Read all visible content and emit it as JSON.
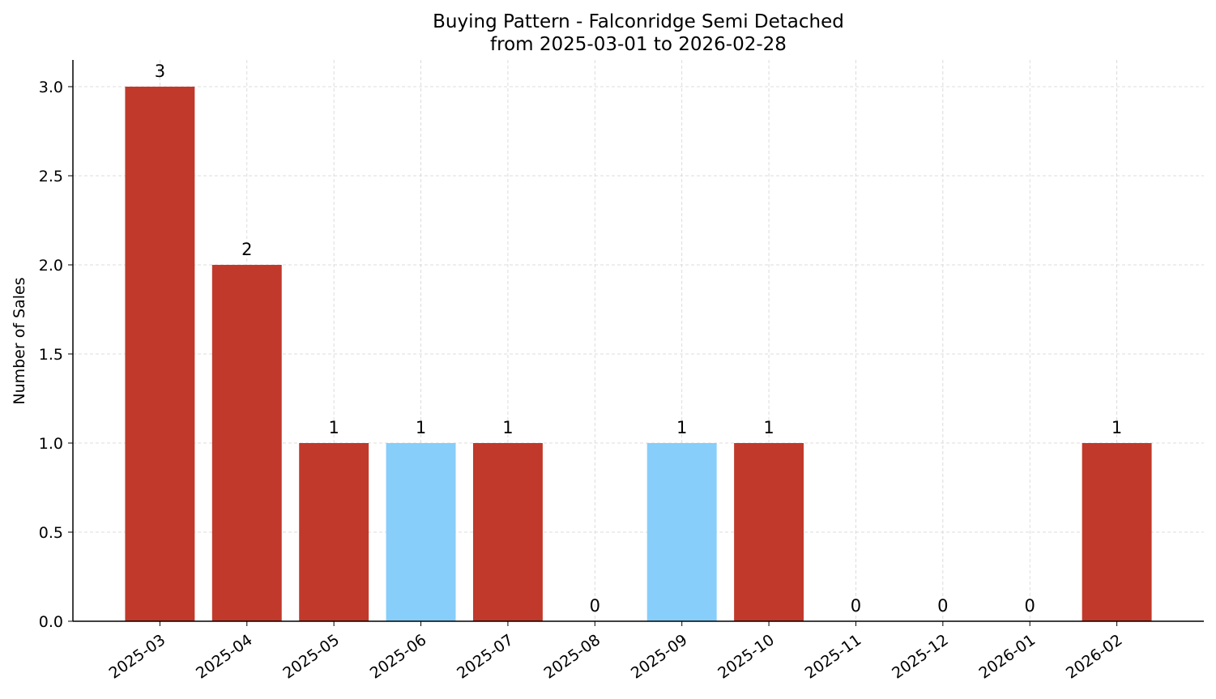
{
  "chart_data": {
    "type": "bar",
    "title": "Buying Pattern - Falconridge Semi Detached",
    "subtitle": "from 2025-03-01 to 2026-02-28",
    "y_label": "Number of Sales",
    "categories": [
      "2025-03",
      "2025-04",
      "2025-05",
      "2025-06",
      "2025-07",
      "2025-08",
      "2025-09",
      "2025-10",
      "2025-11",
      "2025-12",
      "2026-01",
      "2026-02"
    ],
    "values": [
      3,
      2,
      1,
      1,
      1,
      0,
      1,
      1,
      0,
      0,
      0,
      1
    ],
    "colors": [
      "#c0392b",
      "#c0392b",
      "#c0392b",
      "#87cefa",
      "#c0392b",
      "#c0392b",
      "#87cefa",
      "#c0392b",
      "#c0392b",
      "#c0392b",
      "#c0392b",
      "#c0392b"
    ],
    "ylim": [
      0,
      3.15
    ],
    "yticks": [
      {
        "value": 0,
        "label": "0.0"
      },
      {
        "value": 0.5,
        "label": "0.5"
      },
      {
        "value": 1,
        "label": "1.0"
      },
      {
        "value": 1.5,
        "label": "1.5"
      },
      {
        "value": 2,
        "label": "2.0"
      },
      {
        "value": 2.5,
        "label": "2.5"
      },
      {
        "value": 3,
        "label": "3.0"
      }
    ],
    "grid": true
  }
}
